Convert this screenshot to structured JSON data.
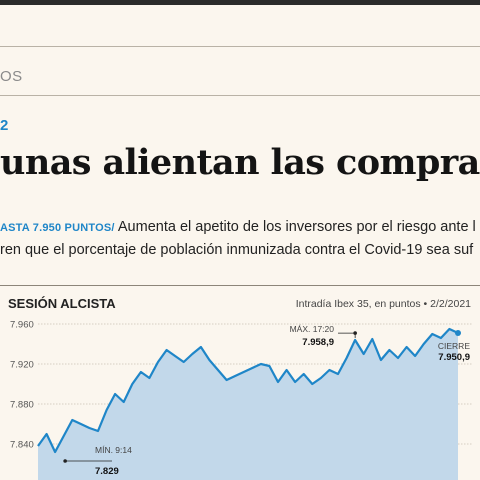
{
  "header": {
    "section_label": "OS",
    "section_number": "2"
  },
  "article": {
    "headline": "unas alientan las compras e",
    "deck_kicker": "ASTA 7.950 PUNTOS/",
    "deck_line1": " Aumenta el apetito de los inversores por el riesgo ante l",
    "deck_line2": "ren que el porcentaje de población inmunizada contra el Covid-19 sea suf"
  },
  "chart": {
    "title": "SESIÓN ALCISTA",
    "subtitle": "Intradía Ibex 35, en puntos • 2/2/2021",
    "y_ticks": [
      "7.960",
      "7.920",
      "7.880",
      "7.840"
    ],
    "min_label": "MÍN. 9:14",
    "min_value": "7.829",
    "max_label": "MÁX. 17:20",
    "max_value": "7.958,9",
    "close_label": "CIERRE",
    "close_value": "7.950,9"
  },
  "colors": {
    "line": "#1f86c8",
    "area": "#c2d8ea",
    "accent": "#1f86c8",
    "background": "#fbf6ee"
  },
  "chart_data": {
    "type": "area",
    "title": "SESIÓN ALCISTA",
    "subtitle": "Intradía Ibex 35, en puntos • 2/2/2021",
    "xlabel": "",
    "ylabel": "",
    "ylim": [
      7820,
      7965
    ],
    "yticks": [
      7960,
      7920,
      7880,
      7840
    ],
    "grid": true,
    "series": [
      {
        "values": [
          7838,
          7850,
          7832,
          7848,
          7864,
          7860,
          7856,
          7853,
          7874,
          7890,
          7882,
          7900,
          7912,
          7906,
          7922,
          7934,
          7928,
          7922,
          7930,
          7937,
          7924,
          7914,
          7904,
          7908,
          7912,
          7916,
          7920,
          7918,
          7902,
          7914,
          7902,
          7910,
          7900,
          7906,
          7914,
          7910,
          7926,
          7944,
          7930,
          7945,
          7924,
          7934,
          7926,
          7937,
          7928,
          7940,
          7950,
          7946,
          7955,
          7951
        ]
      }
    ],
    "annotations": [
      {
        "label": "MÍN. 9:14",
        "value": 7829
      },
      {
        "label": "MÁX. 17:20",
        "value": 7958.9
      },
      {
        "label": "CIERRE",
        "value": 7950.9
      }
    ]
  }
}
